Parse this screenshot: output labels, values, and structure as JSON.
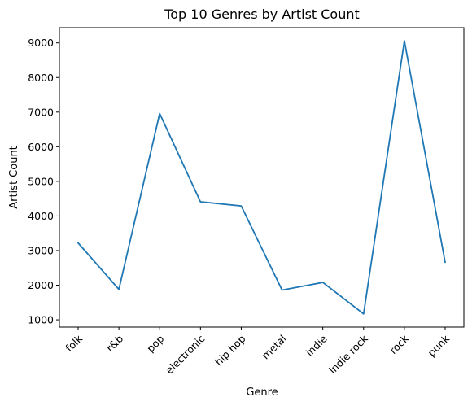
{
  "chart_data": {
    "type": "line",
    "title": "Top 10 Genres by Artist Count",
    "xlabel": "Genre",
    "ylabel": "Artist Count",
    "categories": [
      "folk",
      "r&b",
      "pop",
      "electronic",
      "hip hop",
      "metal",
      "indie",
      "indie rock",
      "rock",
      "punk"
    ],
    "series": [
      {
        "values": [
          3220,
          1880,
          6960,
          4410,
          4290,
          1860,
          2080,
          1170,
          9060,
          2660
        ]
      }
    ],
    "ylim": [
      790,
      9440
    ],
    "yticks": [
      1000,
      2000,
      3000,
      4000,
      5000,
      6000,
      7000,
      8000,
      9000
    ],
    "ytick_labels": [
      "1000",
      "2000",
      "3000",
      "4000",
      "5000",
      "6000",
      "7000",
      "8000",
      "9000"
    ],
    "grid": false,
    "legend": "none",
    "colors": {
      "series": "#1f77b4",
      "axes": "#000000"
    }
  }
}
